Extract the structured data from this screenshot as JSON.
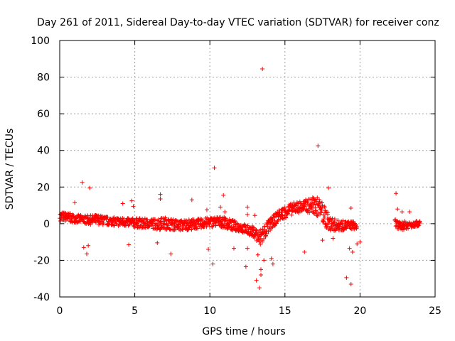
{
  "chart_data": {
    "type": "scatter",
    "title": "Day 261 of 2011, Sidereal Day-to-day VTEC variation (SDTVAR) for receiver conz",
    "xlabel": "GPS time / hours",
    "ylabel": "SDTVAR / TECUs",
    "xlim": [
      0,
      25
    ],
    "ylim": [
      -40,
      100
    ],
    "xticks": [
      "0",
      "5",
      "10",
      "15",
      "20",
      "25"
    ],
    "yticks": [
      "-40",
      "-20",
      "0",
      "20",
      "40",
      "60",
      "80",
      "100"
    ],
    "grid": true,
    "marker": "+",
    "color": "#ff0000",
    "band": [
      [
        0.0,
        1.5,
        6.5
      ],
      [
        0.5,
        1.0,
        6.0
      ],
      [
        1.0,
        0.5,
        5.0
      ],
      [
        1.5,
        0.0,
        4.5
      ],
      [
        2.0,
        -0.5,
        4.5
      ],
      [
        2.5,
        -0.5,
        5.0
      ],
      [
        3.0,
        -1.0,
        4.0
      ],
      [
        3.5,
        -1.0,
        3.5
      ],
      [
        4.0,
        -1.5,
        3.5
      ],
      [
        4.5,
        -1.5,
        3.0
      ],
      [
        5.0,
        -2.0,
        3.0
      ],
      [
        5.5,
        -3.0,
        3.0
      ],
      [
        6.0,
        -2.0,
        2.5
      ],
      [
        6.5,
        -3.5,
        3.0
      ],
      [
        7.0,
        -3.0,
        3.5
      ],
      [
        7.5,
        -3.5,
        2.5
      ],
      [
        8.0,
        -4.0,
        2.0
      ],
      [
        8.5,
        -3.5,
        2.5
      ],
      [
        9.0,
        -3.0,
        2.5
      ],
      [
        9.5,
        -2.5,
        3.0
      ],
      [
        10.0,
        -2.0,
        3.5
      ],
      [
        10.5,
        -1.5,
        4.0
      ],
      [
        11.0,
        -2.5,
        3.5
      ],
      [
        11.5,
        -4.0,
        2.0
      ],
      [
        12.0,
        -4.5,
        0.5
      ],
      [
        12.5,
        -6.0,
        -1.0
      ],
      [
        13.0,
        -8.0,
        -2.0
      ],
      [
        13.3,
        -14.0,
        -3.0
      ],
      [
        13.6,
        -9.0,
        0.0
      ],
      [
        14.0,
        -4.0,
        3.0
      ],
      [
        14.5,
        1.0,
        7.0
      ],
      [
        15.0,
        3.0,
        10.0
      ],
      [
        15.5,
        5.0,
        11.5
      ],
      [
        16.0,
        6.0,
        12.5
      ],
      [
        16.5,
        6.0,
        13.5
      ],
      [
        17.0,
        5.0,
        15.0
      ],
      [
        17.3,
        3.0,
        14.0
      ],
      [
        17.6,
        -2.0,
        10.0
      ],
      [
        18.0,
        -4.0,
        4.0
      ],
      [
        18.5,
        -4.0,
        2.0
      ],
      [
        19.0,
        -3.5,
        1.5
      ],
      [
        19.5,
        -3.0,
        1.5
      ],
      [
        19.8,
        -3.5,
        0.0
      ],
      null,
      [
        22.3,
        -1.5,
        2.5
      ],
      [
        22.6,
        -4.0,
        1.0
      ],
      [
        23.0,
        -3.0,
        1.5
      ],
      [
        23.5,
        -2.0,
        1.5
      ],
      [
        24.0,
        -1.0,
        1.5
      ]
    ],
    "outliers": [
      [
        13.5,
        84.5
      ],
      [
        17.2,
        42.5
      ],
      [
        10.3,
        30.5
      ],
      [
        1.5,
        22.5
      ],
      [
        2.0,
        19.5
      ],
      [
        17.9,
        19.5
      ],
      [
        22.4,
        16.5
      ],
      [
        10.9,
        15.5
      ],
      [
        6.7,
        16.0
      ],
      [
        6.7,
        13.5
      ],
      [
        4.8,
        12.5
      ],
      [
        1.0,
        11.5
      ],
      [
        8.8,
        13.0
      ],
      [
        10.7,
        9.0
      ],
      [
        12.5,
        9.0
      ],
      [
        12.5,
        5.0
      ],
      [
        4.2,
        11.0
      ],
      [
        4.9,
        9.5
      ],
      [
        9.8,
        7.5
      ],
      [
        11.0,
        6.5
      ],
      [
        13.0,
        4.5
      ],
      [
        19.4,
        8.5
      ],
      [
        22.5,
        8.0
      ],
      [
        22.8,
        6.5
      ],
      [
        23.3,
        6.5
      ],
      [
        1.6,
        -13.0
      ],
      [
        1.8,
        -16.5
      ],
      [
        1.9,
        -12.0
      ],
      [
        4.6,
        -11.5
      ],
      [
        6.5,
        -10.5
      ],
      [
        7.4,
        -16.5
      ],
      [
        9.9,
        -14.0
      ],
      [
        10.2,
        -22.0
      ],
      [
        11.6,
        -13.5
      ],
      [
        12.5,
        -13.5
      ],
      [
        12.4,
        -23.5
      ],
      [
        13.1,
        -31.0
      ],
      [
        13.3,
        -35.0
      ],
      [
        13.4,
        -28.0
      ],
      [
        13.6,
        -20.0
      ],
      [
        14.1,
        -19.0
      ],
      [
        14.2,
        -22.0
      ],
      [
        16.3,
        -15.5
      ],
      [
        17.5,
        -9.0
      ],
      [
        18.2,
        -8.0
      ],
      [
        19.1,
        -29.5
      ],
      [
        19.4,
        -33.0
      ],
      [
        19.5,
        -15.5
      ],
      [
        19.3,
        -13.5
      ],
      [
        19.8,
        -11.0
      ],
      [
        20.0,
        -10.0
      ],
      [
        13.4,
        -25.0
      ],
      [
        13.2,
        -17.0
      ]
    ]
  }
}
